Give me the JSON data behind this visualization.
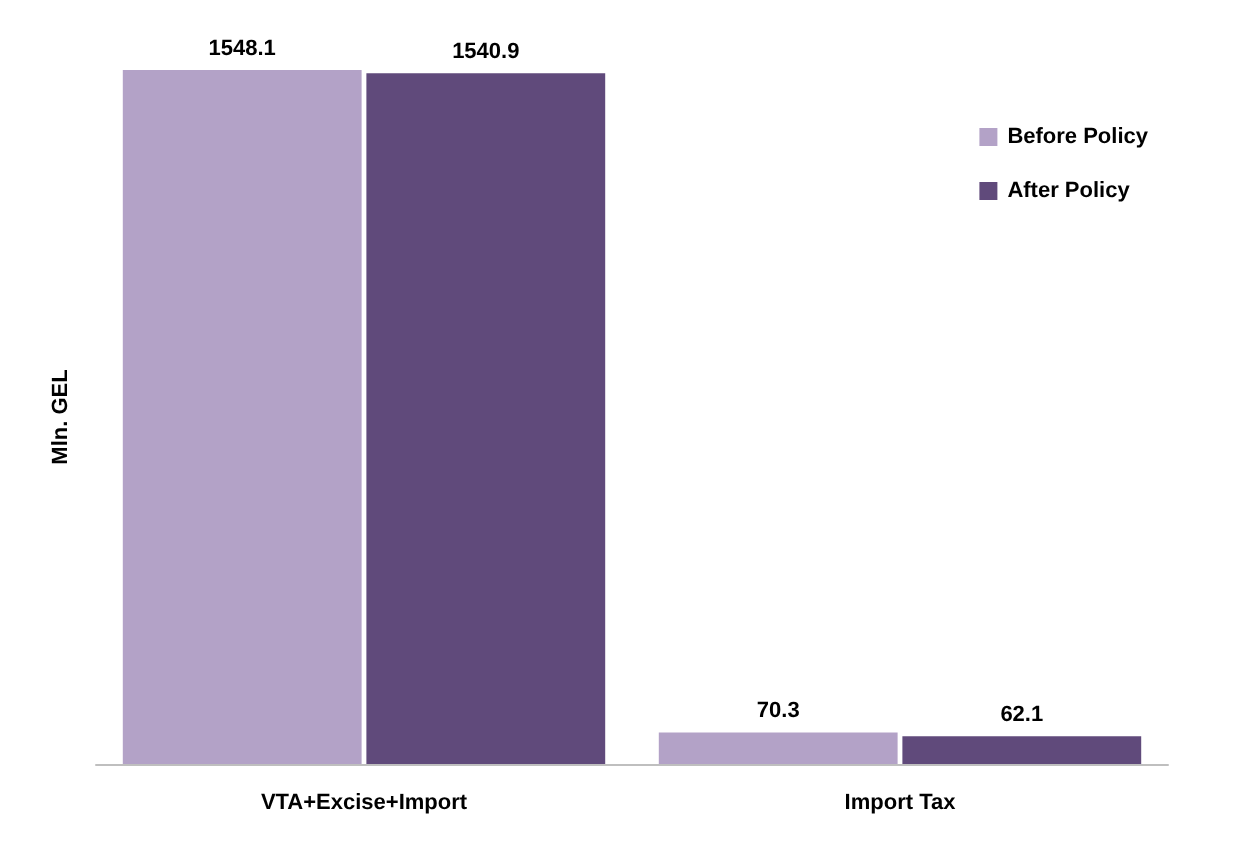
{
  "chart_data": {
    "type": "bar",
    "ylabel": "Mln. GEL",
    "categories": [
      "VTA+Excise+Import",
      "Import Tax"
    ],
    "series": [
      {
        "name": "Before Policy",
        "color": "#b3a2c7",
        "values": [
          1548.1,
          70.3
        ]
      },
      {
        "name": "After Policy",
        "color": "#604a7b",
        "values": [
          1540.9,
          62.1
        ]
      }
    ],
    "data_labels": true,
    "legend": "top right",
    "grid": false
  }
}
